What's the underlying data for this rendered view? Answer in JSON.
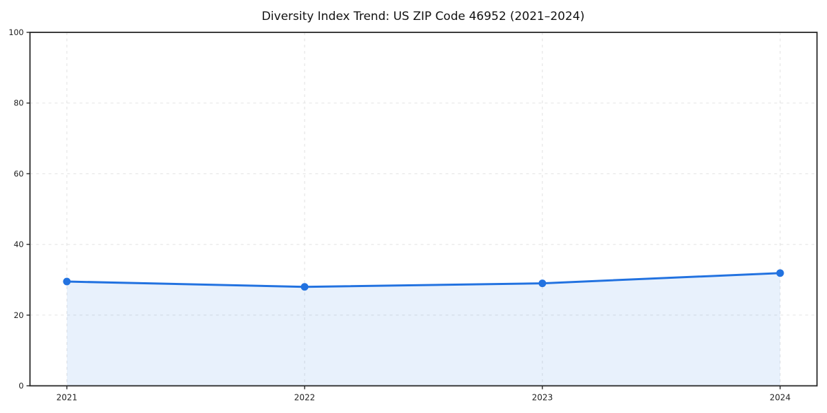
{
  "title": "Diversity Index Trend: US ZIP Code 46952 (2021–2024)",
  "chart_data": {
    "type": "area",
    "title": "Diversity Index Trend: US ZIP Code 46952 (2021–2024)",
    "x": [
      "2021",
      "2022",
      "2023",
      "2024"
    ],
    "series": [
      {
        "name": "Diversity Index",
        "values": [
          29.5,
          28.0,
          29.0,
          31.9
        ]
      }
    ],
    "xlabel": "",
    "ylabel": "",
    "ylim": [
      0,
      100
    ],
    "yticks": [
      0,
      20,
      40,
      60,
      80,
      100
    ],
    "xticks": [
      "2021",
      "2022",
      "2023",
      "2024"
    ],
    "grid": true,
    "grid_style": "dashed",
    "legend": "none",
    "marker": "circle",
    "colors": {
      "line": "#2272e0",
      "marker": "#2272e0",
      "fill": "rgba(34,114,224,0.10)",
      "grid": "#e2e2e2",
      "axis": "#262626",
      "tick_label": "#222222",
      "title": "#111111",
      "background": "#ffffff"
    }
  }
}
